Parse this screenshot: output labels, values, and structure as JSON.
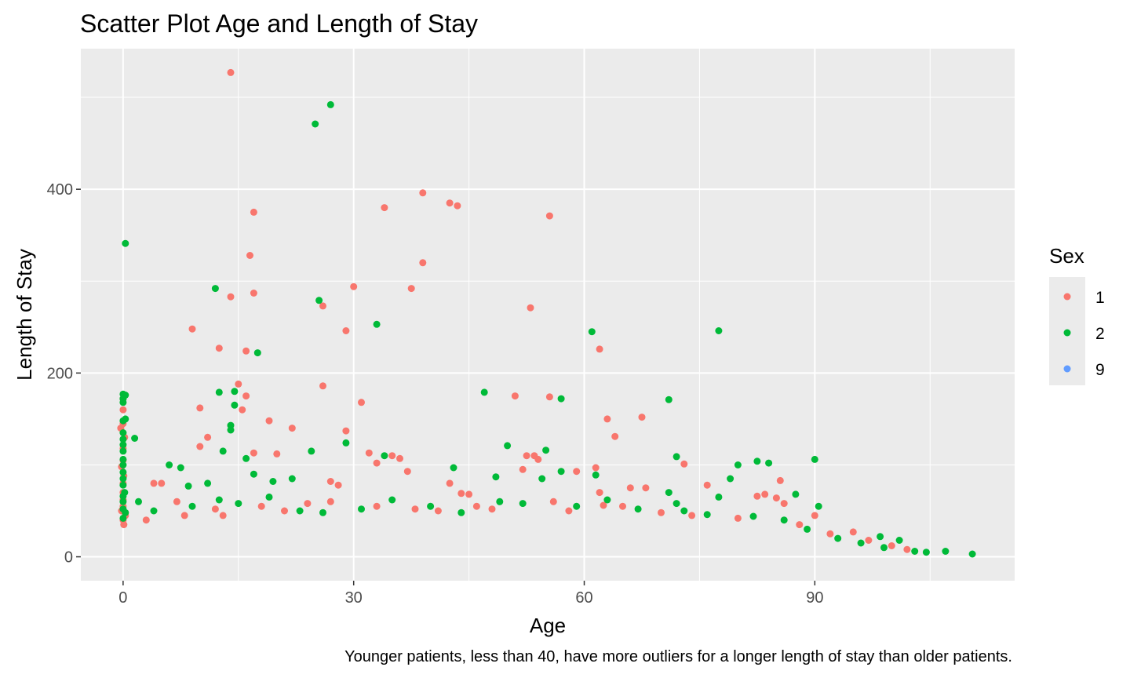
{
  "chart_data": {
    "type": "scatter",
    "title": "Scatter Plot Age and Length of Stay",
    "xlabel": "Age",
    "ylabel": "Length of Stay",
    "caption": "Younger patients, less than 40, have more outliers for a longer length of stay than older patients.",
    "xlim": [
      -5.5,
      116
    ],
    "ylim": [
      -26,
      553
    ],
    "x_ticks": [
      0,
      30,
      60,
      90
    ],
    "y_ticks": [
      0,
      200,
      400
    ],
    "grid": true,
    "background": "#ebebeb",
    "legend": {
      "title": "Sex",
      "placement": "right",
      "entries": [
        {
          "label": "1",
          "color": "#f8766d"
        },
        {
          "label": "2",
          "color": "#00ba38"
        },
        {
          "label": "9",
          "color": "#619cff"
        }
      ]
    },
    "series": [
      {
        "name": "1",
        "color": "#f8766d",
        "points": [
          [
            14,
            527
          ],
          [
            39,
            396
          ],
          [
            42.5,
            385
          ],
          [
            43.5,
            382
          ],
          [
            17,
            375
          ],
          [
            34,
            380
          ],
          [
            55.5,
            371
          ],
          [
            16.5,
            328
          ],
          [
            39,
            320
          ],
          [
            30,
            294
          ],
          [
            37.5,
            292
          ],
          [
            17,
            287
          ],
          [
            14,
            283
          ],
          [
            26,
            273
          ],
          [
            53,
            271
          ],
          [
            9,
            248
          ],
          [
            29,
            246
          ],
          [
            12.5,
            227
          ],
          [
            16,
            224
          ],
          [
            62,
            226
          ],
          [
            26,
            186
          ],
          [
            15,
            188
          ],
          [
            51,
            175
          ],
          [
            55.5,
            174
          ],
          [
            16,
            175
          ],
          [
            31,
            168
          ],
          [
            10,
            162
          ],
          [
            15.5,
            160
          ],
          [
            63,
            150
          ],
          [
            67.5,
            152
          ],
          [
            19,
            148
          ],
          [
            22,
            140
          ],
          [
            29,
            137
          ],
          [
            11,
            130
          ],
          [
            64,
            131
          ],
          [
            10,
            120
          ],
          [
            32,
            113
          ],
          [
            20,
            112
          ],
          [
            17,
            113
          ],
          [
            52.5,
            110
          ],
          [
            53.5,
            110
          ],
          [
            54,
            106
          ],
          [
            35,
            110
          ],
          [
            36,
            107
          ],
          [
            33,
            102
          ],
          [
            52,
            95
          ],
          [
            73,
            101
          ],
          [
            37,
            93
          ],
          [
            59,
            93
          ],
          [
            61.5,
            97
          ],
          [
            4,
            80
          ],
          [
            5,
            80
          ],
          [
            42.5,
            80
          ],
          [
            85.5,
            83
          ],
          [
            27,
            82
          ],
          [
            28,
            78
          ],
          [
            76,
            78
          ],
          [
            62,
            70
          ],
          [
            68,
            75
          ],
          [
            66,
            75
          ],
          [
            44,
            69
          ],
          [
            45,
            68
          ],
          [
            62.5,
            56
          ],
          [
            82.5,
            66
          ],
          [
            83.5,
            68
          ],
          [
            85,
            64
          ],
          [
            86,
            58
          ],
          [
            90,
            45
          ],
          [
            95,
            27
          ],
          [
            0,
            172
          ],
          [
            0,
            160
          ],
          [
            0,
            145
          ],
          [
            -0.3,
            140
          ],
          [
            0.2,
            130
          ],
          [
            0,
            118
          ],
          [
            0,
            105
          ],
          [
            -0.2,
            98
          ],
          [
            0.1,
            88
          ],
          [
            0,
            80
          ],
          [
            0,
            70
          ],
          [
            0,
            62
          ],
          [
            0,
            55
          ],
          [
            -0.2,
            50
          ],
          [
            0.3,
            45
          ],
          [
            0,
            40
          ],
          [
            0.1,
            35
          ],
          [
            3,
            40
          ],
          [
            7,
            60
          ],
          [
            8,
            45
          ],
          [
            12,
            52
          ],
          [
            13,
            45
          ],
          [
            18,
            55
          ],
          [
            21,
            50
          ],
          [
            24,
            58
          ],
          [
            27,
            60
          ],
          [
            33,
            55
          ],
          [
            38,
            52
          ],
          [
            41,
            50
          ],
          [
            46,
            55
          ],
          [
            48,
            52
          ],
          [
            56,
            60
          ],
          [
            58,
            50
          ],
          [
            65,
            55
          ],
          [
            70,
            48
          ],
          [
            74,
            45
          ],
          [
            80,
            42
          ],
          [
            88,
            35
          ],
          [
            92,
            25
          ],
          [
            97,
            18
          ],
          [
            100,
            12
          ],
          [
            102,
            8
          ]
        ]
      },
      {
        "name": "2",
        "color": "#00ba38",
        "points": [
          [
            27,
            492
          ],
          [
            25,
            471
          ],
          [
            0.3,
            341
          ],
          [
            12,
            292
          ],
          [
            25.5,
            279
          ],
          [
            33,
            253
          ],
          [
            61,
            245
          ],
          [
            77.5,
            246
          ],
          [
            17.5,
            222
          ],
          [
            47,
            179
          ],
          [
            12.5,
            179
          ],
          [
            14.5,
            180
          ],
          [
            0,
            177
          ],
          [
            0.3,
            176
          ],
          [
            0,
            172
          ],
          [
            0,
            168
          ],
          [
            71,
            171
          ],
          [
            57,
            172
          ],
          [
            14.5,
            165
          ],
          [
            14,
            143
          ],
          [
            14,
            138
          ],
          [
            0,
            148
          ],
          [
            0.3,
            150
          ],
          [
            0,
            135
          ],
          [
            0,
            128
          ],
          [
            1.5,
            129
          ],
          [
            0,
            122
          ],
          [
            0,
            115
          ],
          [
            13,
            115
          ],
          [
            24.5,
            115
          ],
          [
            29,
            124
          ],
          [
            50,
            121
          ],
          [
            55,
            116
          ],
          [
            0,
            106
          ],
          [
            0,
            100
          ],
          [
            16,
            107
          ],
          [
            34,
            110
          ],
          [
            72,
            109
          ],
          [
            80,
            100
          ],
          [
            82.5,
            104
          ],
          [
            84,
            102
          ],
          [
            90,
            106
          ],
          [
            6,
            100
          ],
          [
            7.5,
            97
          ],
          [
            43,
            97
          ],
          [
            48.5,
            87
          ],
          [
            54.5,
            85
          ],
          [
            57,
            93
          ],
          [
            61.5,
            89
          ],
          [
            8.5,
            77
          ],
          [
            11,
            80
          ],
          [
            17,
            90
          ],
          [
            22,
            85
          ],
          [
            19.5,
            82
          ],
          [
            79,
            85
          ],
          [
            71,
            70
          ],
          [
            72,
            58
          ],
          [
            77.5,
            65
          ],
          [
            87.5,
            68
          ],
          [
            90.5,
            55
          ],
          [
            98.5,
            22
          ],
          [
            101,
            18
          ],
          [
            104.5,
            5
          ],
          [
            107,
            6
          ],
          [
            110.5,
            3
          ],
          [
            0,
            92
          ],
          [
            0,
            85
          ],
          [
            0,
            78
          ],
          [
            0.2,
            70
          ],
          [
            0,
            66
          ],
          [
            0,
            60
          ],
          [
            0,
            52
          ],
          [
            0.3,
            48
          ],
          [
            0,
            42
          ],
          [
            2,
            60
          ],
          [
            4,
            50
          ],
          [
            9,
            55
          ],
          [
            12.5,
            62
          ],
          [
            15,
            58
          ],
          [
            19,
            65
          ],
          [
            23,
            50
          ],
          [
            26,
            48
          ],
          [
            31,
            52
          ],
          [
            35,
            62
          ],
          [
            40,
            55
          ],
          [
            44,
            48
          ],
          [
            49,
            60
          ],
          [
            52,
            58
          ],
          [
            59,
            55
          ],
          [
            63,
            62
          ],
          [
            67,
            52
          ],
          [
            73,
            50
          ],
          [
            76,
            46
          ],
          [
            82,
            44
          ],
          [
            86,
            40
          ],
          [
            89,
            30
          ],
          [
            93,
            20
          ],
          [
            96,
            15
          ],
          [
            99,
            10
          ],
          [
            103,
            6
          ]
        ]
      },
      {
        "name": "9",
        "color": "#619cff",
        "points": []
      }
    ]
  }
}
